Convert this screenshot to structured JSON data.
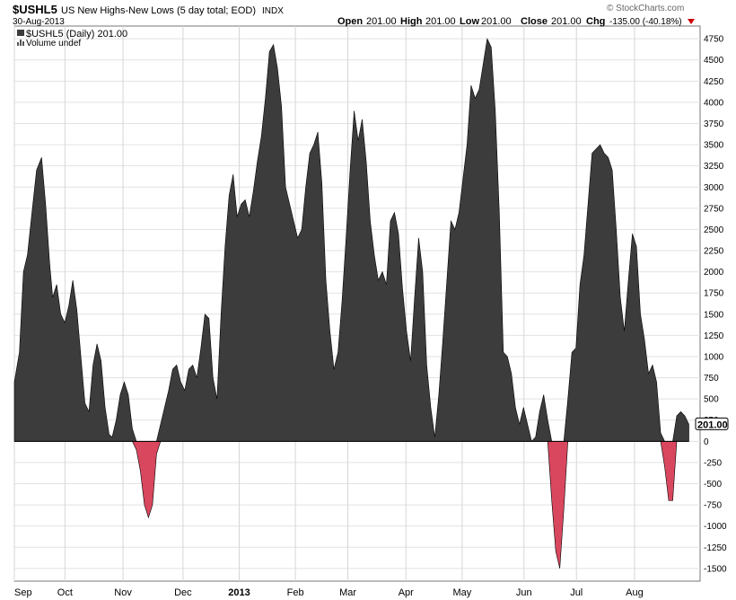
{
  "header": {
    "symbol": "$USHL5",
    "description": "US New Highs-New Lows (5 day total; EOD)",
    "exchange": "INDX",
    "date": "30-Aug-2013",
    "watermark": "© StockCharts.com",
    "open_label": "Open",
    "open_value": "201.00",
    "high_label": "High",
    "high_value": "201.00",
    "low_label": "Low",
    "low_value": "201.00",
    "close_label": "Close",
    "close_value": "201.00",
    "chg_label": "Chg",
    "chg_value": "-135.00 (-40.18%)",
    "chg_indicator": "down-triangle-icon",
    "legend_series": "$USHL5 (Daily) 201.00",
    "legend_volume": "Volume undef",
    "last_value_tag": "201.00"
  },
  "colors": {
    "positive_fill": "#3c3c3c",
    "negative_fill": "#d9475f",
    "down": "#cc0000"
  },
  "chart_data": {
    "type": "area",
    "ylim": [
      -1650,
      4900
    ],
    "y_ticks": [
      -1500,
      -1250,
      -1000,
      -750,
      -500,
      -250,
      0,
      250,
      500,
      750,
      1000,
      1250,
      1500,
      1750,
      2000,
      2250,
      2500,
      2750,
      3000,
      3250,
      3500,
      3750,
      4000,
      4250,
      4500,
      4750
    ],
    "x_tick_labels": [
      "Sep",
      "Oct",
      "Nov",
      "Dec",
      "2013",
      "Feb",
      "Mar",
      "Apr",
      "May",
      "Jun",
      "Jul",
      "Aug"
    ],
    "x_tick_dates": [
      "2012-09-04",
      "2012-10-01",
      "2012-11-01",
      "2012-12-03",
      "2013-01-02",
      "2013-02-01",
      "2013-03-01",
      "2013-04-01",
      "2013-05-01",
      "2013-06-03",
      "2013-07-01",
      "2013-08-01"
    ],
    "grid": true,
    "series": [
      {
        "values": [
          [
            0,
            700
          ],
          [
            5,
            1050
          ],
          [
            9,
            2000
          ],
          [
            13,
            2200
          ],
          [
            17,
            2650
          ],
          [
            22,
            3200
          ],
          [
            27,
            3350
          ],
          [
            31,
            2800
          ],
          [
            35,
            2100
          ],
          [
            38,
            1700
          ],
          [
            42,
            1850
          ],
          [
            46,
            1500
          ],
          [
            50,
            1400
          ],
          [
            54,
            1600
          ],
          [
            58,
            1900
          ],
          [
            62,
            1550
          ],
          [
            66,
            1000
          ],
          [
            70,
            450
          ],
          [
            74,
            350
          ],
          [
            78,
            900
          ],
          [
            82,
            1150
          ],
          [
            86,
            950
          ],
          [
            90,
            400
          ],
          [
            94,
            80
          ],
          [
            97,
            50
          ],
          [
            101,
            250
          ],
          [
            105,
            550
          ],
          [
            109,
            700
          ],
          [
            113,
            550
          ],
          [
            117,
            150
          ],
          [
            121,
            -100
          ],
          [
            125,
            -350
          ],
          [
            129,
            -750
          ],
          [
            133,
            -900
          ],
          [
            137,
            -750
          ],
          [
            141,
            -150
          ],
          [
            145,
            200
          ],
          [
            149,
            400
          ],
          [
            153,
            600
          ],
          [
            157,
            850
          ],
          [
            161,
            900
          ],
          [
            165,
            700
          ],
          [
            169,
            600
          ],
          [
            173,
            850
          ],
          [
            177,
            900
          ],
          [
            181,
            750
          ],
          [
            185,
            1100
          ],
          [
            189,
            1500
          ],
          [
            193,
            1450
          ],
          [
            197,
            750
          ],
          [
            201,
            500
          ],
          [
            205,
            1500
          ],
          [
            209,
            2300
          ],
          [
            213,
            2900
          ],
          [
            217,
            3150
          ],
          [
            221,
            2650
          ],
          [
            225,
            2800
          ],
          [
            229,
            2850
          ],
          [
            233,
            2650
          ],
          [
            237,
            2950
          ],
          [
            241,
            3300
          ],
          [
            245,
            3600
          ],
          [
            249,
            4050
          ],
          [
            253,
            4600
          ],
          [
            257,
            4680
          ],
          [
            261,
            4400
          ],
          [
            265,
            3950
          ],
          [
            269,
            3000
          ],
          [
            273,
            2800
          ],
          [
            277,
            2600
          ],
          [
            281,
            2400
          ],
          [
            285,
            2500
          ],
          [
            289,
            3000
          ],
          [
            293,
            3400
          ],
          [
            297,
            3500
          ],
          [
            301,
            3650
          ],
          [
            305,
            3050
          ],
          [
            309,
            1900
          ],
          [
            313,
            1300
          ],
          [
            317,
            850
          ],
          [
            321,
            1050
          ],
          [
            325,
            1650
          ],
          [
            329,
            2400
          ],
          [
            333,
            3200
          ],
          [
            337,
            3900
          ],
          [
            341,
            3550
          ],
          [
            345,
            3800
          ],
          [
            349,
            3300
          ],
          [
            353,
            2600
          ],
          [
            357,
            2200
          ],
          [
            361,
            1900
          ],
          [
            365,
            2000
          ],
          [
            369,
            1850
          ],
          [
            373,
            2600
          ],
          [
            377,
            2700
          ],
          [
            381,
            2450
          ],
          [
            385,
            1800
          ],
          [
            389,
            1300
          ],
          [
            393,
            950
          ],
          [
            397,
            1700
          ],
          [
            401,
            2400
          ],
          [
            405,
            2000
          ],
          [
            409,
            900
          ],
          [
            413,
            400
          ],
          [
            417,
            50
          ],
          [
            421,
            550
          ],
          [
            425,
            1200
          ],
          [
            429,
            1900
          ],
          [
            433,
            2600
          ],
          [
            437,
            2500
          ],
          [
            441,
            2700
          ],
          [
            445,
            3100
          ],
          [
            449,
            3500
          ],
          [
            453,
            4200
          ],
          [
            457,
            4050
          ],
          [
            461,
            4150
          ],
          [
            465,
            4450
          ],
          [
            469,
            4750
          ],
          [
            473,
            4650
          ],
          [
            477,
            3900
          ],
          [
            481,
            2700
          ],
          [
            485,
            1050
          ],
          [
            489,
            1000
          ],
          [
            493,
            800
          ],
          [
            497,
            400
          ],
          [
            501,
            200
          ],
          [
            505,
            400
          ],
          [
            509,
            200
          ],
          [
            513,
            0
          ],
          [
            517,
            50
          ],
          [
            521,
            350
          ],
          [
            525,
            550
          ],
          [
            529,
            250
          ],
          [
            533,
            -700
          ],
          [
            537,
            -1300
          ],
          [
            541,
            -1500
          ],
          [
            545,
            -800
          ],
          [
            549,
            500
          ],
          [
            553,
            1050
          ],
          [
            557,
            1100
          ],
          [
            561,
            1850
          ],
          [
            565,
            2200
          ],
          [
            569,
            2800
          ],
          [
            573,
            3400
          ],
          [
            577,
            3450
          ],
          [
            581,
            3500
          ],
          [
            585,
            3400
          ],
          [
            589,
            3350
          ],
          [
            593,
            3200
          ],
          [
            597,
            2500
          ],
          [
            601,
            1700
          ],
          [
            605,
            1300
          ],
          [
            609,
            1900
          ],
          [
            613,
            2450
          ],
          [
            617,
            2300
          ],
          [
            621,
            1500
          ],
          [
            625,
            1200
          ],
          [
            629,
            800
          ],
          [
            633,
            900
          ],
          [
            637,
            700
          ],
          [
            641,
            100
          ],
          [
            645,
            -300
          ],
          [
            649,
            -700
          ],
          [
            653,
            -700
          ],
          [
            657,
            300
          ],
          [
            661,
            350
          ],
          [
            665,
            300
          ],
          [
            669,
            201
          ]
        ]
      }
    ]
  }
}
